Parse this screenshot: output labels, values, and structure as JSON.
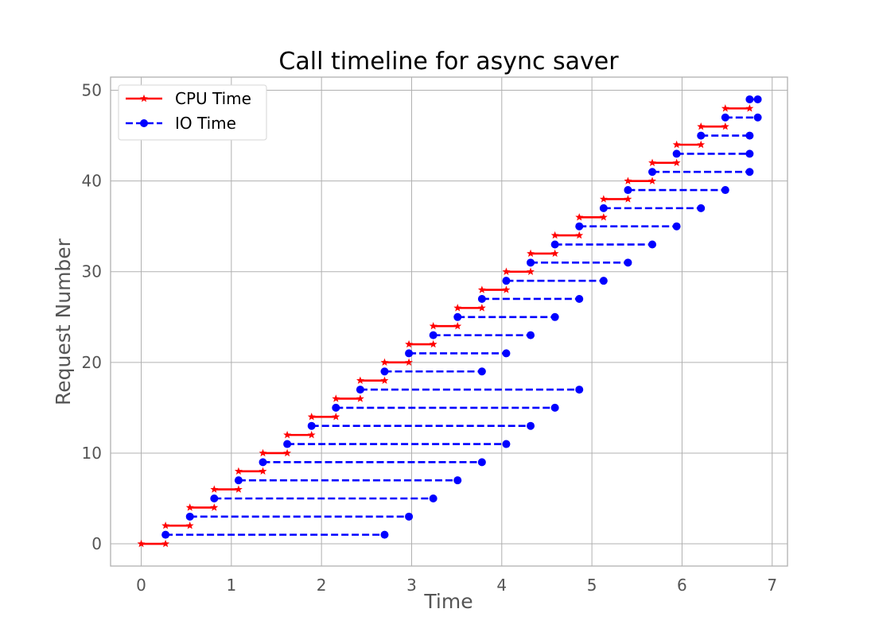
{
  "chart_data": {
    "type": "line",
    "title": "Call timeline for async saver",
    "xlabel": "Time",
    "ylabel": "Request Number",
    "xlim": [
      -0.34,
      7.17
    ],
    "ylim": [
      -2.45,
      51.45
    ],
    "xticks": [
      0,
      1,
      2,
      3,
      4,
      5,
      6,
      7
    ],
    "yticks": [
      0,
      10,
      20,
      30,
      40,
      50
    ],
    "grid": true,
    "legend_position": "top-left",
    "series": [
      {
        "name": "CPU Time",
        "color": "#ff0000",
        "linestyle": "solid",
        "marker": "star",
        "segments": [
          {
            "y": 0,
            "start": 0.0,
            "end": 0.27
          },
          {
            "y": 2,
            "start": 0.27,
            "end": 0.54
          },
          {
            "y": 4,
            "start": 0.54,
            "end": 0.81
          },
          {
            "y": 6,
            "start": 0.81,
            "end": 1.08
          },
          {
            "y": 8,
            "start": 1.08,
            "end": 1.35
          },
          {
            "y": 10,
            "start": 1.35,
            "end": 1.62
          },
          {
            "y": 12,
            "start": 1.62,
            "end": 1.89
          },
          {
            "y": 14,
            "start": 1.89,
            "end": 2.16
          },
          {
            "y": 16,
            "start": 2.16,
            "end": 2.43
          },
          {
            "y": 18,
            "start": 2.43,
            "end": 2.7
          },
          {
            "y": 20,
            "start": 2.7,
            "end": 2.97
          },
          {
            "y": 22,
            "start": 2.97,
            "end": 3.24
          },
          {
            "y": 24,
            "start": 3.24,
            "end": 3.51
          },
          {
            "y": 26,
            "start": 3.51,
            "end": 3.78
          },
          {
            "y": 28,
            "start": 3.78,
            "end": 4.05
          },
          {
            "y": 30,
            "start": 4.05,
            "end": 4.32
          },
          {
            "y": 32,
            "start": 4.32,
            "end": 4.59
          },
          {
            "y": 34,
            "start": 4.59,
            "end": 4.86
          },
          {
            "y": 36,
            "start": 4.86,
            "end": 5.13
          },
          {
            "y": 38,
            "start": 5.13,
            "end": 5.4
          },
          {
            "y": 40,
            "start": 5.4,
            "end": 5.67
          },
          {
            "y": 42,
            "start": 5.67,
            "end": 5.94
          },
          {
            "y": 44,
            "start": 5.94,
            "end": 6.21
          },
          {
            "y": 46,
            "start": 6.21,
            "end": 6.48
          },
          {
            "y": 48,
            "start": 6.48,
            "end": 6.75
          }
        ]
      },
      {
        "name": "IO Time",
        "color": "#0000ff",
        "linestyle": "dashed",
        "marker": "circle",
        "segments": [
          {
            "y": 1,
            "start": 0.27,
            "end": 2.7
          },
          {
            "y": 3,
            "start": 0.54,
            "end": 2.97
          },
          {
            "y": 5,
            "start": 0.81,
            "end": 3.24
          },
          {
            "y": 7,
            "start": 1.08,
            "end": 3.51
          },
          {
            "y": 9,
            "start": 1.35,
            "end": 3.78
          },
          {
            "y": 11,
            "start": 1.62,
            "end": 4.05
          },
          {
            "y": 13,
            "start": 1.89,
            "end": 4.32
          },
          {
            "y": 15,
            "start": 2.16,
            "end": 4.59
          },
          {
            "y": 17,
            "start": 2.43,
            "end": 4.86
          },
          {
            "y": 19,
            "start": 2.7,
            "end": 3.78
          },
          {
            "y": 21,
            "start": 2.97,
            "end": 4.05
          },
          {
            "y": 23,
            "start": 3.24,
            "end": 4.32
          },
          {
            "y": 25,
            "start": 3.51,
            "end": 4.59
          },
          {
            "y": 27,
            "start": 3.78,
            "end": 4.86
          },
          {
            "y": 29,
            "start": 4.05,
            "end": 5.13
          },
          {
            "y": 31,
            "start": 4.32,
            "end": 5.4
          },
          {
            "y": 33,
            "start": 4.59,
            "end": 5.67
          },
          {
            "y": 35,
            "start": 4.86,
            "end": 5.94
          },
          {
            "y": 37,
            "start": 5.13,
            "end": 6.21
          },
          {
            "y": 39,
            "start": 5.4,
            "end": 6.48
          },
          {
            "y": 41,
            "start": 5.67,
            "end": 6.75
          },
          {
            "y": 43,
            "start": 5.94,
            "end": 6.75
          },
          {
            "y": 45,
            "start": 6.21,
            "end": 6.75
          },
          {
            "y": 47,
            "start": 6.48,
            "end": 6.84
          },
          {
            "y": 49,
            "start": 6.75,
            "end": 6.84
          }
        ]
      }
    ]
  }
}
